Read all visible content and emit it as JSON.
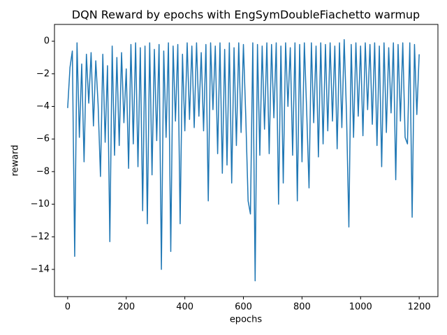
{
  "chart_data": {
    "type": "line",
    "title": "DQN Reward by epochs with EngSymDoubleFiachetto warmup",
    "x_label": "epochs",
    "y_label": "reward",
    "x": [
      0,
      8,
      16,
      24,
      32,
      40,
      48,
      56,
      64,
      72,
      80,
      88,
      96,
      104,
      112,
      120,
      128,
      136,
      144,
      152,
      160,
      168,
      176,
      184,
      192,
      200,
      208,
      216,
      224,
      232,
      240,
      248,
      256,
      264,
      272,
      280,
      288,
      296,
      304,
      312,
      320,
      328,
      336,
      344,
      352,
      360,
      368,
      376,
      384,
      392,
      400,
      408,
      416,
      424,
      432,
      440,
      448,
      456,
      464,
      472,
      480,
      488,
      496,
      504,
      512,
      520,
      528,
      536,
      544,
      552,
      560,
      568,
      576,
      584,
      592,
      600,
      608,
      616,
      624,
      632,
      640,
      648,
      656,
      664,
      672,
      680,
      688,
      696,
      704,
      712,
      720,
      728,
      736,
      744,
      752,
      760,
      768,
      776,
      784,
      792,
      800,
      808,
      816,
      824,
      832,
      840,
      848,
      856,
      864,
      872,
      880,
      888,
      896,
      904,
      912,
      920,
      928,
      936,
      944,
      952,
      960,
      968,
      976,
      984,
      992,
      1000,
      1008,
      1016,
      1024,
      1032,
      1040,
      1048,
      1056,
      1064,
      1072,
      1080,
      1088,
      1096,
      1104,
      1112,
      1120,
      1128,
      1136,
      1144,
      1152,
      1160,
      1168,
      1176,
      1184,
      1192,
      1200
    ],
    "series": [
      {
        "name": "reward",
        "color": "#1f77b4",
        "values": [
          -4.1,
          -1.6,
          -0.6,
          -13.2,
          -0.1,
          -5.9,
          -1.4,
          -7.4,
          -0.8,
          -3.8,
          -0.7,
          -5.2,
          -1.2,
          -3.9,
          -8.3,
          -0.8,
          -6.2,
          -1.5,
          -12.3,
          -0.3,
          -7.0,
          -1.0,
          -6.4,
          -0.7,
          -5.0,
          -1.7,
          -7.8,
          -0.2,
          -6.3,
          -0.1,
          -7.7,
          -0.4,
          -10.4,
          -0.3,
          -11.2,
          -0.1,
          -8.2,
          -0.5,
          -6.1,
          -0.2,
          -14.0,
          -0.6,
          -5.9,
          -0.1,
          -12.9,
          -0.3,
          -4.9,
          -0.2,
          -11.2,
          -0.8,
          -5.5,
          -0.1,
          -4.8,
          -0.3,
          -5.3,
          -0.1,
          -4.6,
          -0.7,
          -5.5,
          -0.2,
          -9.8,
          -0.1,
          -4.2,
          -0.3,
          -6.9,
          -0.1,
          -8.1,
          -0.5,
          -7.6,
          -0.1,
          -8.7,
          -0.4,
          -6.4,
          -0.1,
          -5.6,
          -0.2,
          -4.6,
          -9.8,
          -10.6,
          -0.1,
          -14.7,
          -0.2,
          -7.0,
          -0.3,
          -5.4,
          -0.1,
          -6.9,
          -0.2,
          -4.7,
          -0.1,
          -10.0,
          -0.3,
          -8.7,
          -0.1,
          -4.0,
          -0.4,
          -7.0,
          -0.1,
          -9.8,
          -0.2,
          -7.4,
          -0.1,
          -4.3,
          -9.0,
          -0.1,
          -5.0,
          -0.3,
          -7.1,
          -0.1,
          -6.3,
          -0.2,
          -5.5,
          -0.1,
          -4.9,
          -0.3,
          -6.6,
          -0.1,
          -5.3,
          0.1,
          -4.5,
          -11.4,
          -0.2,
          -5.9,
          -0.1,
          -4.6,
          -0.3,
          -5.8,
          -0.1,
          -4.2,
          -0.2,
          -5.1,
          -0.1,
          -6.4,
          -0.3,
          -7.7,
          -0.1,
          -5.6,
          -0.4,
          -4.4,
          -0.1,
          -8.5,
          -0.2,
          -4.9,
          -0.1,
          -5.9,
          -6.3,
          -0.1,
          -10.8,
          -0.2,
          -4.5,
          -0.8
        ]
      }
    ],
    "xlim": [
      -45,
      1264
    ],
    "ylim": [
      -15.67,
      1.03
    ],
    "xticks": [
      0,
      200,
      400,
      600,
      800,
      1000,
      1200
    ],
    "yticks": [
      0,
      {
        "value": -2,
        "label": "−2"
      },
      {
        "value": -4,
        "label": "−4"
      },
      {
        "value": -6,
        "label": "−6"
      },
      {
        "value": -8,
        "label": "−8"
      },
      {
        "value": -10,
        "label": "−10"
      },
      {
        "value": -12,
        "label": "−12"
      },
      {
        "value": -14,
        "label": "−14"
      }
    ]
  }
}
